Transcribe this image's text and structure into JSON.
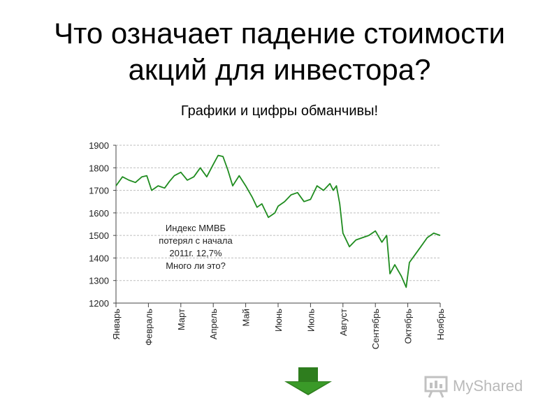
{
  "slide": {
    "title_lines": [
      "Что означает падение стоимости",
      "акций для инвестора?"
    ],
    "subtitle": "Графики и цифры обманчивы!",
    "annotation_lines": [
      "Индекс ММВБ",
      "потерял с начала",
      "2011г. 12,7%",
      "Много ли это?"
    ],
    "watermark": "MyShared",
    "arrow_icon": "down-arrow-icon",
    "colors": {
      "line": "#1f8c1f",
      "arrow": "#2e7d1e",
      "grid": "#bdbdbd"
    }
  },
  "chart_data": {
    "type": "line",
    "title": "",
    "xlabel": "",
    "ylabel": "",
    "ylim": [
      1200,
      1900
    ],
    "yticks": [
      1900,
      1800,
      1700,
      1600,
      1500,
      1400,
      1300,
      1200
    ],
    "grid": true,
    "categories": [
      "Январь",
      "Февраль",
      "Март",
      "Апрель",
      "Май",
      "Июнь",
      "Июль",
      "Август",
      "Сентябрь",
      "Октябрь",
      "Ноябрь"
    ],
    "series": [
      {
        "x": [
          0,
          0.2,
          0.4,
          0.6,
          0.8,
          0.95,
          1.1,
          1.3,
          1.5,
          1.65,
          1.8,
          2.0,
          2.2,
          2.4,
          2.6,
          2.8,
          3.0,
          3.15,
          3.3,
          3.45,
          3.6,
          3.8,
          4.0,
          4.2,
          4.35,
          4.5,
          4.7,
          4.9,
          5.0,
          5.2,
          5.4,
          5.6,
          5.8,
          6.0,
          6.2,
          6.4,
          6.6,
          6.7,
          6.8,
          6.9,
          7.0,
          7.2,
          7.4,
          7.6,
          7.8,
          8.0,
          8.2,
          8.35,
          8.45,
          8.6,
          8.8,
          8.95,
          9.05,
          9.2,
          9.4,
          9.6,
          9.8,
          10.0
        ],
        "values": [
          1720,
          1760,
          1745,
          1735,
          1760,
          1765,
          1700,
          1720,
          1710,
          1740,
          1765,
          1780,
          1745,
          1760,
          1800,
          1760,
          1815,
          1855,
          1850,
          1790,
          1720,
          1765,
          1720,
          1670,
          1625,
          1640,
          1580,
          1600,
          1630,
          1650,
          1680,
          1690,
          1650,
          1660,
          1720,
          1700,
          1730,
          1700,
          1720,
          1640,
          1510,
          1450,
          1480,
          1490,
          1500,
          1520,
          1470,
          1500,
          1330,
          1370,
          1320,
          1270,
          1380,
          1410,
          1450,
          1490,
          1510,
          1500
        ]
      }
    ]
  }
}
